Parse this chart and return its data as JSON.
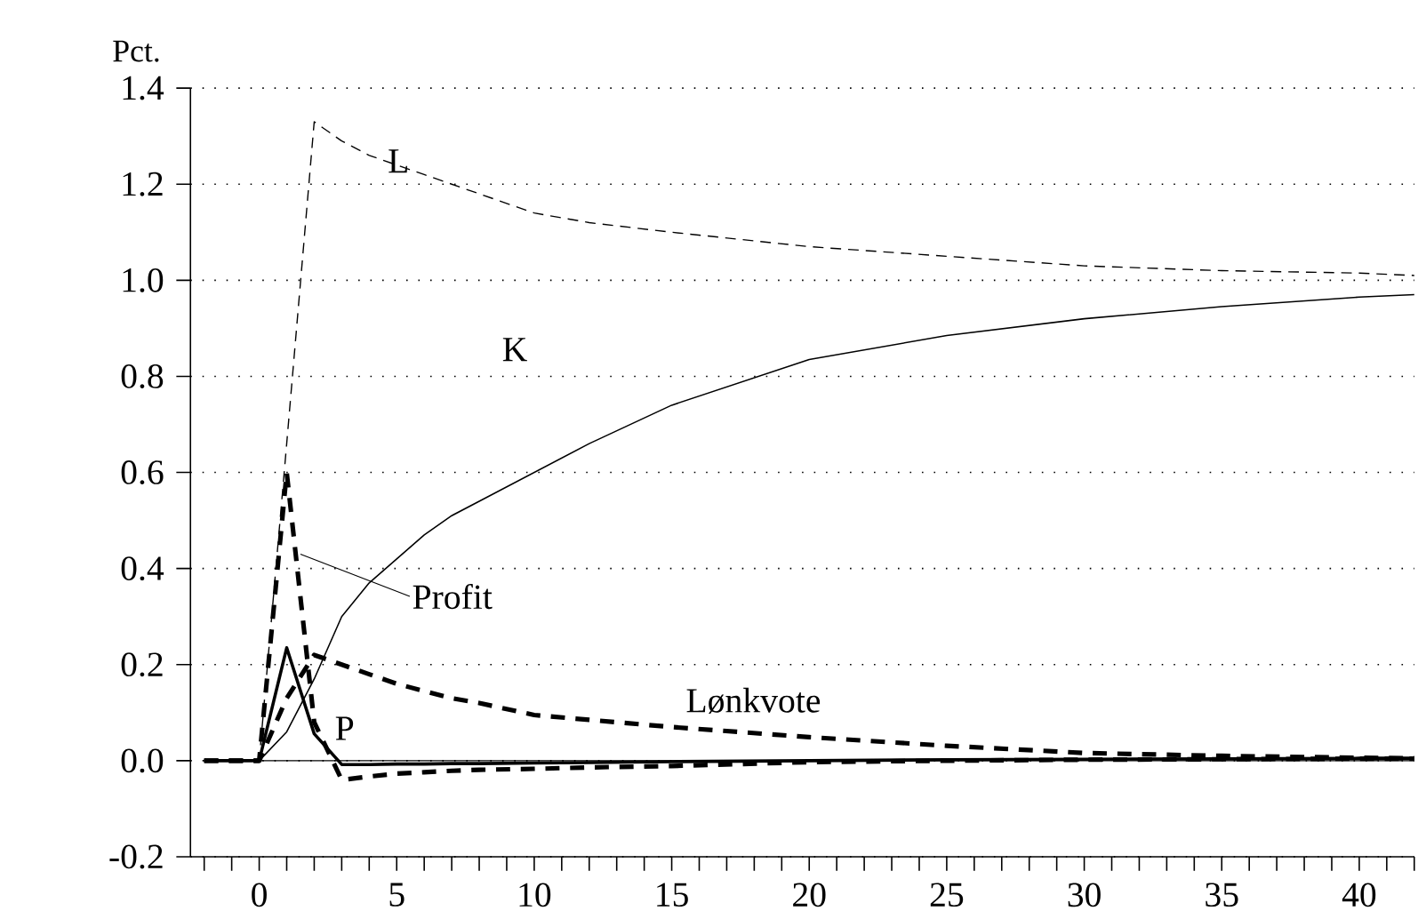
{
  "chart_data": {
    "type": "line",
    "ylabel": "Pct.",
    "x": [
      -2,
      -1,
      0,
      1,
      2,
      3,
      4,
      5,
      6,
      7,
      8,
      10,
      12,
      15,
      20,
      25,
      30,
      35,
      40,
      42
    ],
    "series": [
      {
        "color": "#000000",
        "line_style": "dashed",
        "values": [
          0,
          0,
          0,
          0.66,
          1.33,
          1.29,
          1.26,
          1.24,
          1.22,
          1.2,
          1.18,
          1.14,
          1.12,
          1.1,
          1.07,
          1.05,
          1.03,
          1.02,
          1.015,
          1.01
        ]
      },
      {
        "color": "#000000",
        "line_style": "solid",
        "values": [
          0,
          0,
          0,
          0.06,
          0.17,
          0.3,
          0.37,
          0.42,
          0.47,
          0.51,
          0.54,
          0.6,
          0.66,
          0.74,
          0.835,
          0.885,
          0.92,
          0.945,
          0.965,
          0.97
        ]
      },
      {
        "color": "#000000",
        "line_style": "dashed",
        "values": [
          0,
          0,
          0,
          0.6,
          0.08,
          -0.04,
          -0.033,
          -0.027,
          -0.024,
          -0.021,
          -0.019,
          -0.017,
          -0.014,
          -0.011,
          -0.003,
          0,
          0.002,
          0.003,
          0.004,
          0.004
        ]
      },
      {
        "color": "#000000",
        "line_style": "dashed",
        "values": [
          0,
          0,
          0,
          0.13,
          0.22,
          0.2,
          0.18,
          0.16,
          0.145,
          0.13,
          0.12,
          0.095,
          0.085,
          0.07,
          0.049,
          0.031,
          0.016,
          0.01,
          0.006,
          0.005
        ]
      },
      {
        "color": "#000000",
        "line_style": "solid",
        "values": [
          0,
          0,
          0,
          0.235,
          0.056,
          -0.008,
          -0.008,
          -0.007,
          -0.007,
          -0.006,
          -0.006,
          -0.005,
          -0.004,
          -0.002,
          0,
          0.002,
          0.003,
          0.004,
          0.005,
          0.005
        ]
      }
    ],
    "annotations": [
      "L",
      "K",
      {
        "text": "Profit",
        "x": 1.5,
        "y": 0.43
      },
      "Lønkvote",
      "P"
    ],
    "ref_lines": [
      {
        "axis": "y",
        "value": 0,
        "color": "#000000",
        "line_style": "solid"
      }
    ],
    "xlim": [
      -2.5,
      42
    ],
    "xticks": [
      {
        "value": -2,
        "label": null
      },
      {
        "value": -1,
        "label": null
      },
      0,
      {
        "value": 1,
        "label": null
      },
      {
        "value": 2,
        "label": null
      },
      {
        "value": 3,
        "label": null
      },
      {
        "value": 4,
        "label": null
      },
      5,
      {
        "value": 6,
        "label": null
      },
      {
        "value": 7,
        "label": null
      },
      {
        "value": 8,
        "label": null
      },
      {
        "value": 9,
        "label": null
      },
      10,
      {
        "value": 11,
        "label": null
      },
      {
        "value": 12,
        "label": null
      },
      {
        "value": 13,
        "label": null
      },
      {
        "value": 14,
        "label": null
      },
      15,
      {
        "value": 16,
        "label": null
      },
      {
        "value": 17,
        "label": null
      },
      {
        "value": 18,
        "label": null
      },
      {
        "value": 19,
        "label": null
      },
      20,
      {
        "value": 21,
        "label": null
      },
      {
        "value": 22,
        "label": null
      },
      {
        "value": 23,
        "label": null
      },
      {
        "value": 24,
        "label": null
      },
      25,
      {
        "value": 26,
        "label": null
      },
      {
        "value": 27,
        "label": null
      },
      {
        "value": 28,
        "label": null
      },
      {
        "value": 29,
        "label": null
      },
      30,
      {
        "value": 31,
        "label": null
      },
      {
        "value": 32,
        "label": null
      },
      {
        "value": 33,
        "label": null
      },
      {
        "value": 34,
        "label": null
      },
      35,
      {
        "value": 36,
        "label": null
      },
      {
        "value": 37,
        "label": null
      },
      {
        "value": 38,
        "label": null
      },
      {
        "value": 39,
        "label": null
      },
      40,
      {
        "value": 41,
        "label": null
      },
      {
        "value": 42,
        "label": null
      }
    ],
    "ylim": [
      -0.2,
      1.4
    ],
    "yticks": [
      -0.2,
      {
        "value": 0,
        "label": "0.0"
      },
      0.2,
      0.4,
      0.6,
      0.8,
      {
        "value": 1,
        "label": "1.0"
      },
      1.2,
      1.4
    ],
    "grid": "y"
  }
}
